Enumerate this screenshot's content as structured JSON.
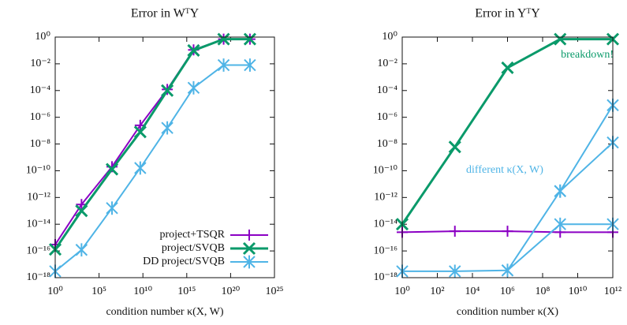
{
  "chart_data": [
    {
      "type": "line",
      "title": "Error in WᵀY",
      "x_label": "condition number κ(X, W)",
      "xlog": true,
      "ylog": true,
      "legend": "lower right",
      "x": [
        1,
        1000,
        3000000,
        5000000000,
        6000000000000,
        6000000000000000.0,
        1.6e+19,
        1.6e+22
      ],
      "xlim": [
        1,
        1e+25
      ],
      "ylim": [
        1e-18,
        1
      ],
      "xticks": [
        {
          "value": 1,
          "label": "10⁰"
        },
        {
          "value": 100000.0,
          "label": "10⁵"
        },
        {
          "value": 10000000000.0,
          "label": "10¹⁰"
        },
        {
          "value": 1000000000000000.0,
          "label": "10¹⁵"
        },
        {
          "value": 1e+20,
          "label": "10²⁰"
        },
        {
          "value": 1e+25,
          "label": "10²⁵"
        }
      ],
      "yticks": [
        {
          "value": 1,
          "label": "10⁰"
        },
        {
          "value": 0.01,
          "label": "10⁻²"
        },
        {
          "value": 0.0001,
          "label": "10⁻⁴"
        },
        {
          "value": 1e-06,
          "label": "10⁻⁶"
        },
        {
          "value": 1e-08,
          "label": "10⁻⁸"
        },
        {
          "value": 1e-10,
          "label": "10⁻¹⁰"
        },
        {
          "value": 1e-12,
          "label": "10⁻¹²"
        },
        {
          "value": 1e-14,
          "label": "10⁻¹⁴"
        },
        {
          "value": 1e-16,
          "label": "10⁻¹⁶"
        },
        {
          "value": 1e-18,
          "label": "10⁻¹⁸"
        }
      ],
      "series": [
        {
          "name": "project+TSQR",
          "color": "#8b00c4",
          "marker": "plus",
          "values": [
            3e-16,
            3e-13,
            2e-10,
            2.5e-07,
            0.00012,
            0.11,
            0.7,
            0.7
          ]
        },
        {
          "name": "project/SVQB",
          "color": "#0a9a6a",
          "marker": "x",
          "values": [
            1.3e-16,
            1e-13,
            1.3e-10,
            8e-08,
            0.0001,
            0.1,
            0.7,
            0.7
          ]
        },
        {
          "name": "DD project/SVQB",
          "color": "#4fb4e6",
          "marker": "star",
          "values": [
            3e-18,
            1.2e-16,
            1.6e-13,
            1.6e-10,
            1.6e-07,
            0.00016,
            0.008,
            0.008
          ]
        }
      ]
    },
    {
      "type": "line",
      "title": "Error in YᵀY",
      "x_label": "condition number κ(X)",
      "xlog": true,
      "ylog": true,
      "x": [
        1,
        1000,
        1000000,
        1000000000,
        1000000000000
      ],
      "xlim": [
        1,
        1000000000000.0
      ],
      "ylim": [
        1e-18,
        1
      ],
      "xticks": [
        {
          "value": 1,
          "label": "10⁰"
        },
        {
          "value": 100,
          "label": "10²"
        },
        {
          "value": 10000,
          "label": "10⁴"
        },
        {
          "value": 1000000,
          "label": "10⁶"
        },
        {
          "value": 100000000,
          "label": "10⁸"
        },
        {
          "value": 10000000000,
          "label": "10¹⁰"
        },
        {
          "value": 1000000000000,
          "label": "10¹²"
        }
      ],
      "yticks": [
        {
          "value": 1,
          "label": "10⁰"
        },
        {
          "value": 0.01,
          "label": "10⁻²"
        },
        {
          "value": 0.0001,
          "label": "10⁻⁴"
        },
        {
          "value": 1e-06,
          "label": "10⁻⁶"
        },
        {
          "value": 1e-08,
          "label": "10⁻⁸"
        },
        {
          "value": 1e-10,
          "label": "10⁻¹⁰"
        },
        {
          "value": 1e-12,
          "label": "10⁻¹²"
        },
        {
          "value": 1e-14,
          "label": "10⁻¹⁴"
        },
        {
          "value": 1e-16,
          "label": "10⁻¹⁶"
        },
        {
          "value": 1e-18,
          "label": "10⁻¹⁸"
        }
      ],
      "series": [
        {
          "color": "#8b00c4",
          "marker": "plus",
          "values": [
            2.5e-15,
            3e-15,
            3e-15,
            2.5e-15,
            2.5e-15
          ]
        },
        {
          "color": "#0a9a6a",
          "marker": "x",
          "values": [
            1e-14,
            6e-09,
            0.005,
            0.7,
            0.7
          ]
        },
        {
          "color": "#4fb4e6",
          "marker": "star",
          "values": [
            3e-18,
            3e-18,
            3.5e-18,
            1e-14,
            1e-14
          ]
        },
        {
          "color": "#4fb4e6",
          "marker": "star",
          "values": [
            null,
            null,
            3.5e-18,
            3e-12,
            8e-06
          ]
        },
        {
          "color": "#4fb4e6",
          "marker": "star",
          "values": [
            null,
            null,
            null,
            3e-12,
            1.3e-08
          ]
        }
      ],
      "annotations": [
        {
          "text": "breakdown!",
          "color": "#0a9a6a"
        },
        {
          "text": "different κ(X, W)",
          "color": "#4fb4e6"
        }
      ]
    }
  ]
}
